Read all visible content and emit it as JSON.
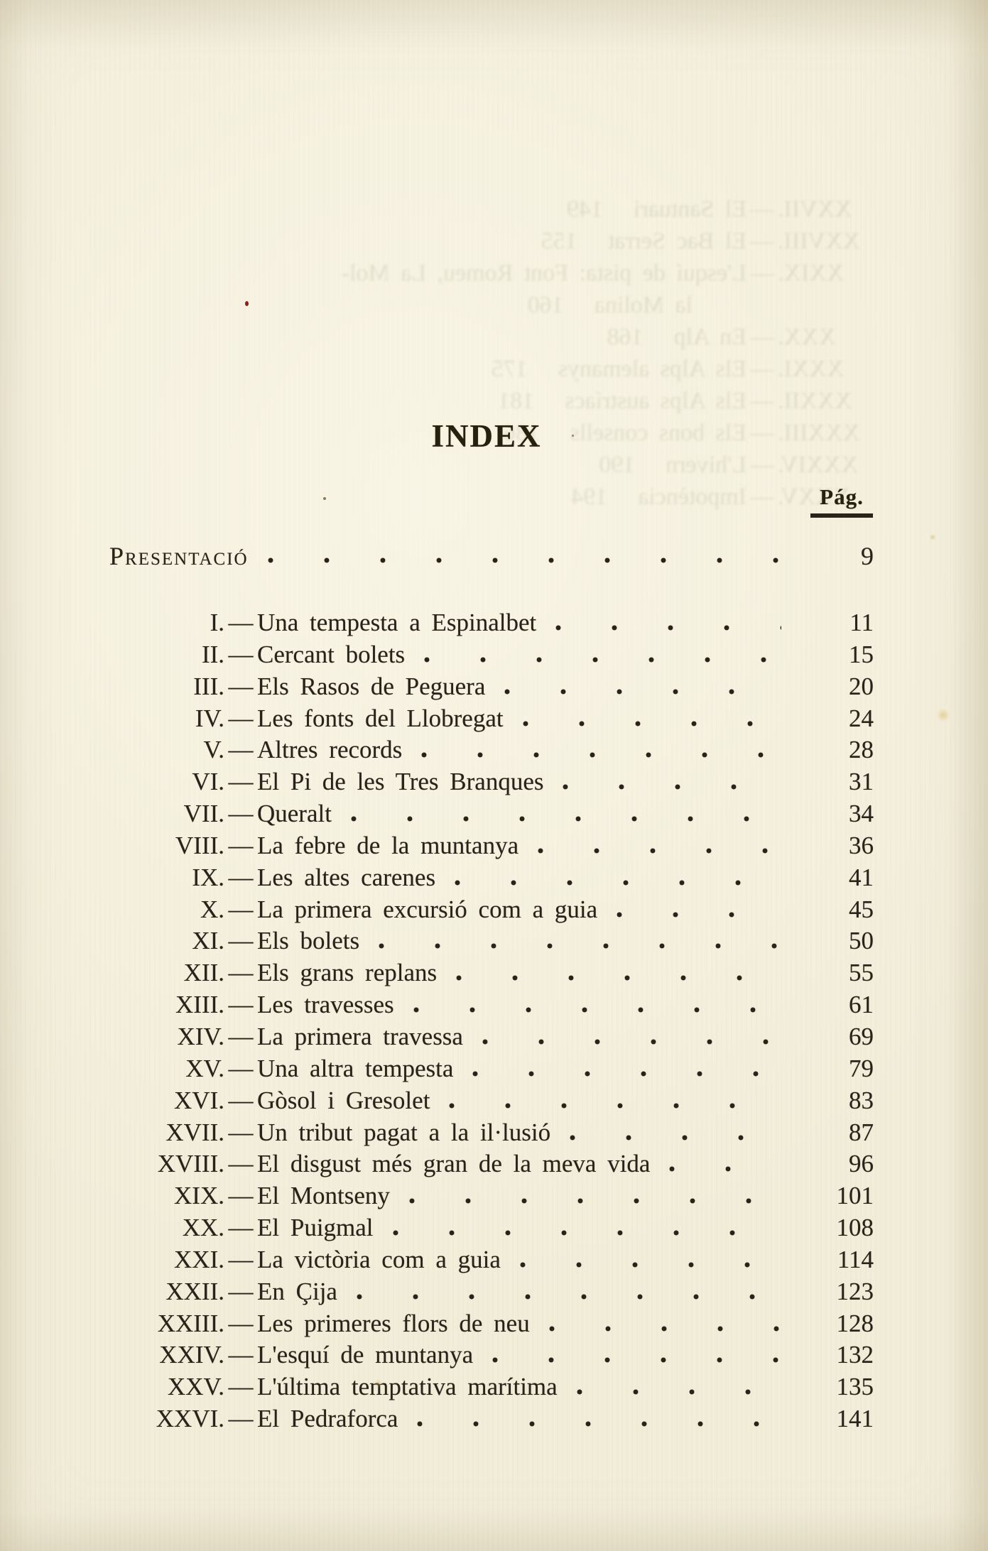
{
  "page": {
    "title": "INDEX",
    "column_header": "Pág.",
    "separator": "—",
    "front_matter": {
      "label": "Presentació",
      "page": "9"
    },
    "entries": [
      {
        "numeral": "I.",
        "title": "Una tempesta a Espinalbet",
        "page": "11"
      },
      {
        "numeral": "II.",
        "title": "Cercant bolets",
        "page": "15"
      },
      {
        "numeral": "III.",
        "title": "Els Rasos de Peguera",
        "page": "20"
      },
      {
        "numeral": "IV.",
        "title": "Les fonts del Llobregat",
        "page": "24"
      },
      {
        "numeral": "V.",
        "title": "Altres records",
        "page": "28"
      },
      {
        "numeral": "VI.",
        "title": "El Pi de les Tres Branques",
        "page": "31"
      },
      {
        "numeral": "VII.",
        "title": "Queralt",
        "page": "34"
      },
      {
        "numeral": "VIII.",
        "title": "La febre de la muntanya",
        "page": "36"
      },
      {
        "numeral": "IX.",
        "title": "Les altes carenes",
        "page": "41"
      },
      {
        "numeral": "X.",
        "title": "La primera excursió com a guia",
        "page": "45"
      },
      {
        "numeral": "XI.",
        "title": "Els bolets",
        "page": "50"
      },
      {
        "numeral": "XII.",
        "title": "Els grans replans",
        "page": "55"
      },
      {
        "numeral": "XIII.",
        "title": "Les travesses",
        "page": "61"
      },
      {
        "numeral": "XIV.",
        "title": "La primera travessa",
        "page": "69"
      },
      {
        "numeral": "XV.",
        "title": "Una altra tempesta",
        "page": "79"
      },
      {
        "numeral": "XVI.",
        "title": "Gòsol i Gresolet",
        "page": "83"
      },
      {
        "numeral": "XVII.",
        "title": "Un tribut pagat a la il·lusió",
        "page": "87"
      },
      {
        "numeral": "XVIII.",
        "title": "El disgust més gran de la meva vida",
        "page": "96"
      },
      {
        "numeral": "XIX.",
        "title": "El Montseny",
        "page": "101"
      },
      {
        "numeral": "XX.",
        "title": "El Puigmal",
        "page": "108"
      },
      {
        "numeral": "XXI.",
        "title": "La victòria com a guia",
        "page": "114"
      },
      {
        "numeral": "XXII.",
        "title": "En Çija",
        "page": "123"
      },
      {
        "numeral": "XXIII.",
        "title": "Les primeres flors de neu",
        "page": "128"
      },
      {
        "numeral": "XXIV.",
        "title": "L'esquí de muntanya",
        "page": "132"
      },
      {
        "numeral": "XXV.",
        "title": "L'última temptativa marítima",
        "page": "135"
      },
      {
        "numeral": "XXVI.",
        "title": "El Pedraforca",
        "page": "141"
      }
    ],
    "bleedthrough": {
      "lines": [
        {
          "numeral": "XXVII.",
          "title": "El Santuari",
          "page": "149",
          "cont": false
        },
        {
          "numeral": "XXVIII.",
          "title": "El Bac Serrat",
          "page": "155",
          "cont": false
        },
        {
          "numeral": "XXIX.",
          "title": "L'esquí de pista: Font Romeu, La Mol-",
          "page": "",
          "cont": false
        },
        {
          "numeral": "",
          "title": "la Molina",
          "page": "160",
          "cont": true
        },
        {
          "numeral": "XXX.",
          "title": "En Alp",
          "page": "168",
          "cont": false
        },
        {
          "numeral": "XXXI.",
          "title": "Els Alps alemanys",
          "page": "175",
          "cont": false
        },
        {
          "numeral": "XXXII.",
          "title": "Els Alps austríacs",
          "page": "181",
          "cont": false
        },
        {
          "numeral": "XXXIII.",
          "title": "Els bons consells",
          "page": "186",
          "cont": false
        },
        {
          "numeral": "XXXIV.",
          "title": "L'hivern",
          "page": "190",
          "cont": false
        },
        {
          "numeral": "XXXV.",
          "title": "Impotència",
          "page": "194",
          "cont": false
        }
      ]
    },
    "colors": {
      "paper": "#f2edd9",
      "ink": "#2a231a"
    }
  }
}
